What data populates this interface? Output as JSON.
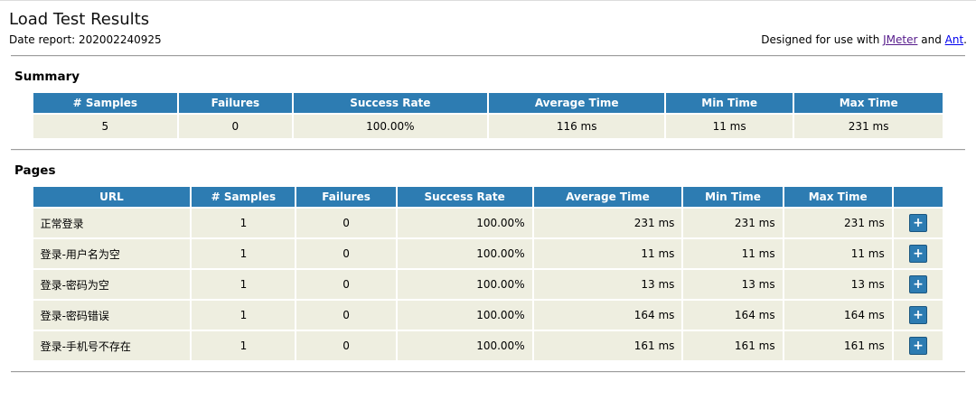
{
  "page": {
    "title": "Load Test Results",
    "date_label": "Date report: 202002240925",
    "designed": {
      "prefix": "Designed for use with ",
      "jmeter_link": "JMeter",
      "and": " and ",
      "ant_link": "Ant",
      "suffix": "."
    }
  },
  "summary": {
    "heading": "Summary",
    "columns": [
      "# Samples",
      "Failures",
      "Success Rate",
      "Average Time",
      "Min Time",
      "Max Time"
    ],
    "row": [
      "5",
      "0",
      "100.00%",
      "116 ms",
      "11 ms",
      "231 ms"
    ]
  },
  "pages": {
    "heading": "Pages",
    "columns": [
      "URL",
      "# Samples",
      "Failures",
      "Success Rate",
      "Average Time",
      "Min Time",
      "Max Time",
      ""
    ],
    "expand_label": "+",
    "rows": [
      {
        "url": "正常登录",
        "samples": "1",
        "failures": "0",
        "success_rate": "100.00%",
        "avg": "231 ms",
        "min": "231 ms",
        "max": "231 ms"
      },
      {
        "url": "登录-用户名为空",
        "samples": "1",
        "failures": "0",
        "success_rate": "100.00%",
        "avg": "11 ms",
        "min": "11 ms",
        "max": "11 ms"
      },
      {
        "url": "登录-密码为空",
        "samples": "1",
        "failures": "0",
        "success_rate": "100.00%",
        "avg": "13 ms",
        "min": "13 ms",
        "max": "13 ms"
      },
      {
        "url": "登录-密码错误",
        "samples": "1",
        "failures": "0",
        "success_rate": "100.00%",
        "avg": "164 ms",
        "min": "164 ms",
        "max": "164 ms"
      },
      {
        "url": "登录-手机号不存在",
        "samples": "1",
        "failures": "0",
        "success_rate": "100.00%",
        "avg": "161 ms",
        "min": "161 ms",
        "max": "161 ms"
      }
    ]
  },
  "colors": {
    "table_header_bg": "#2d7cb2",
    "table_cell_bg": "#eeeee0",
    "link_unvisited": "#0000ee",
    "link_visited": "#551a8b",
    "expand_button_border": "#1a567f"
  }
}
